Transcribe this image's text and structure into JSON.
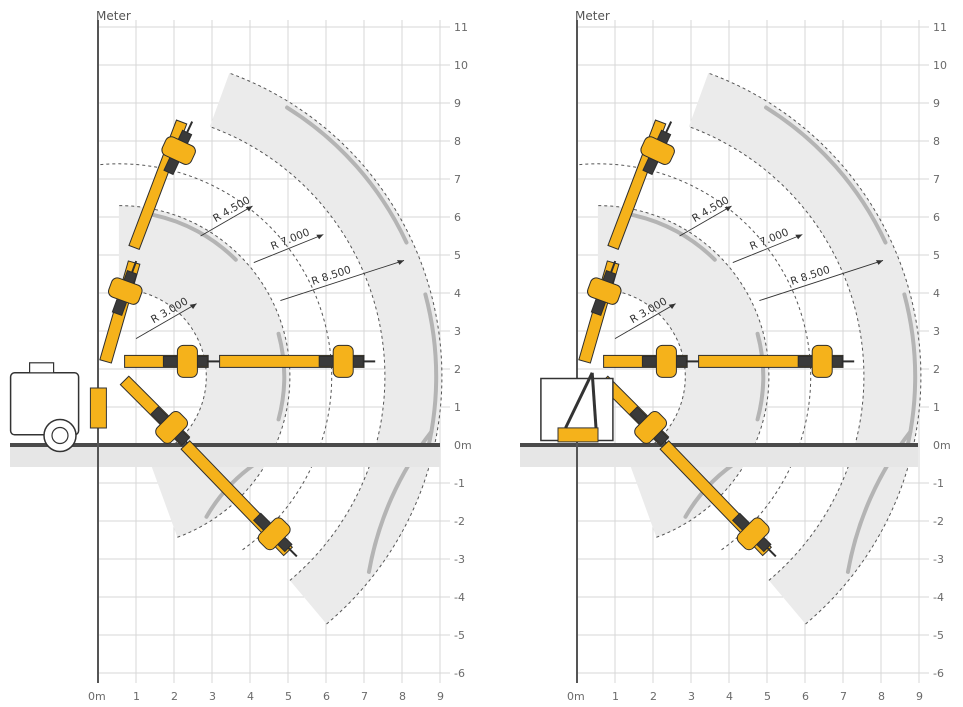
{
  "colors": {
    "grid": "#d7d7d7",
    "axis": "#555555",
    "ground": "#4a4a4a",
    "ground_band": "#e6e6e6",
    "zone_fill": "#ebebeb",
    "zone_stroke": "#b4b4b4",
    "arm": "#f5b21b",
    "arm_stroke": "#2d2d2d",
    "radius_line": "#333333"
  },
  "panels": [
    {
      "id": "left",
      "unit_label": "Meter",
      "x_ticks": [
        "0m",
        "1",
        "2",
        "3",
        "4",
        "5",
        "6",
        "7",
        "8",
        "9"
      ],
      "y_ticks": [
        "11",
        "10",
        "9",
        "8",
        "7",
        "6",
        "5",
        "4",
        "3",
        "2",
        "1",
        "0m",
        "-1",
        "-2",
        "-3",
        "-4",
        "-5",
        "-6"
      ],
      "radius_labels": [
        "R 3.000",
        "R 4.500",
        "R 7.000",
        "R 8.500"
      ],
      "machine": "Tracked carrier with engine unit"
    },
    {
      "id": "right",
      "unit_label": "Meter",
      "x_ticks": [
        "0m",
        "1",
        "2",
        "3",
        "4",
        "5",
        "6",
        "7",
        "8",
        "9"
      ],
      "y_ticks": [
        "11",
        "10",
        "9",
        "8",
        "7",
        "6",
        "5",
        "4",
        "3",
        "2",
        "1",
        "0m",
        "-1",
        "-2",
        "-3",
        "-4",
        "-5",
        "-6"
      ],
      "radius_labels": [
        "R 3.000",
        "R 4.500",
        "R 7.000",
        "R 8.500"
      ],
      "machine": "Tracked carrier with open frame"
    }
  ]
}
